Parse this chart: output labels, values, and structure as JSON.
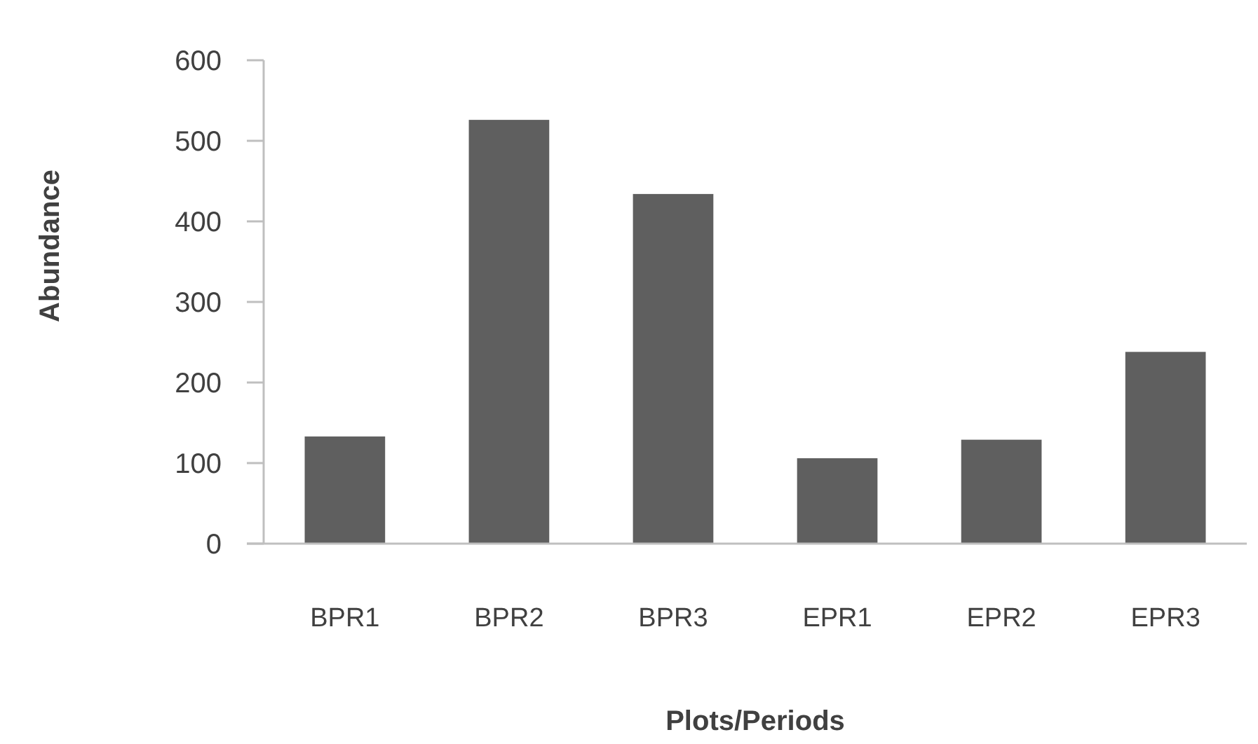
{
  "chart_data": {
    "type": "bar",
    "xlabel": "Plots/Periods",
    "ylabel": "Abundance",
    "categories": [
      "BPR1",
      "BPR2",
      "BPR3",
      "EPR1",
      "EPR2",
      "EPR3"
    ],
    "values": [
      133,
      526,
      434,
      106,
      129,
      238
    ],
    "color": "#5f5f5f",
    "ylim": [
      0,
      600
    ],
    "yticks": [
      0,
      100,
      200,
      300,
      400,
      500,
      600
    ],
    "grid": false
  }
}
